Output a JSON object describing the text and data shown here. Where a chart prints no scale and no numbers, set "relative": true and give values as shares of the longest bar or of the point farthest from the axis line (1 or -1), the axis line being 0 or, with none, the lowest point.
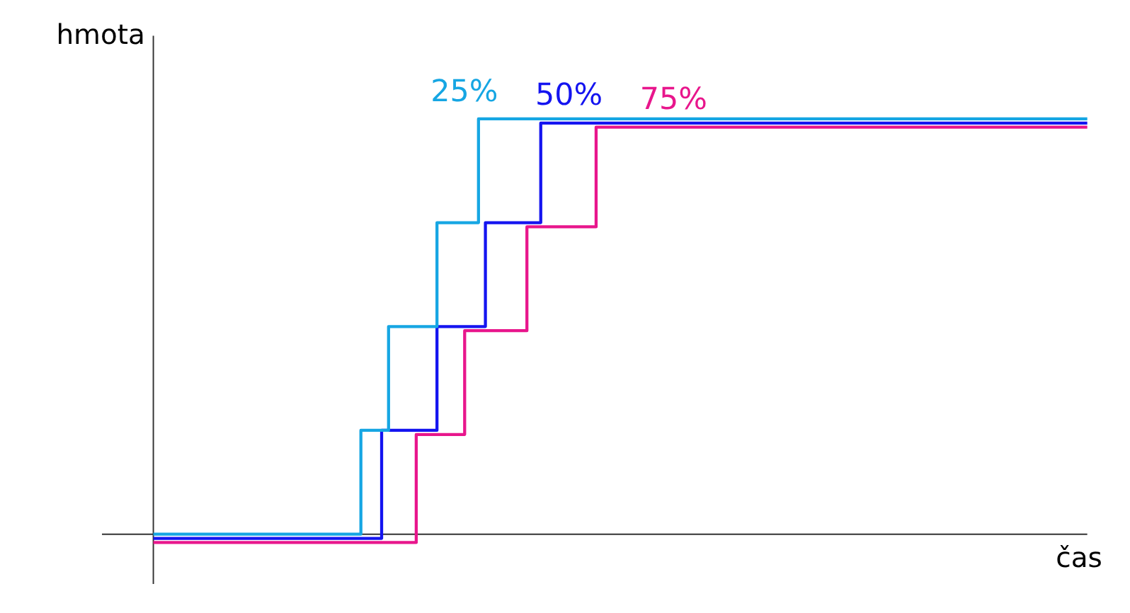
{
  "chart_data": {
    "type": "step",
    "relative": true,
    "xlabel": "čas",
    "ylabel": "hmota",
    "grid": false,
    "categories": [
      null,
      null,
      null,
      null,
      null,
      null,
      null,
      null,
      null,
      null,
      null,
      null,
      null,
      null,
      null,
      null,
      null,
      null,
      null,
      null,
      null,
      null,
      null,
      null,
      null,
      null,
      null,
      null,
      null,
      null,
      null,
      null,
      null,
      null,
      null,
      null,
      null,
      null,
      null,
      null,
      null,
      null,
      null,
      null,
      null,
      null,
      null,
      null,
      null,
      null,
      null,
      null,
      null,
      null,
      null,
      null,
      null,
      null,
      null,
      null,
      null,
      null,
      null,
      null,
      null,
      null,
      null,
      null,
      null,
      null,
      null,
      null,
      null,
      null,
      null,
      null,
      null,
      null,
      null,
      null,
      null,
      null,
      null,
      null,
      null,
      null,
      null,
      null,
      null,
      null,
      null,
      null,
      null,
      null,
      null,
      null,
      null,
      null,
      null,
      null,
      null,
      null,
      null,
      null,
      null,
      null,
      null,
      null,
      null,
      null,
      null,
      null,
      null,
      null,
      null,
      null,
      null,
      null,
      null,
      null,
      null,
      null,
      null,
      null,
      null,
      null,
      null,
      null,
      null,
      null,
      null,
      null,
      null,
      null,
      null,
      null
    ],
    "series": [
      {
        "name": "25%",
        "color": "#16a6e3",
        "values": [
          0,
          0,
          0,
          0,
          0,
          0,
          0,
          0,
          0,
          0,
          0,
          0,
          0,
          0,
          0,
          0,
          0,
          0,
          0,
          0,
          0,
          0,
          0,
          0,
          0,
          0,
          0,
          0,
          0,
          0,
          0.25,
          0.25,
          0.25,
          0.25,
          0.5,
          0.5,
          0.5,
          0.5,
          0.5,
          0.5,
          0.5,
          0.75,
          0.75,
          0.75,
          0.75,
          0.75,
          0.75,
          1,
          1,
          1,
          1,
          1,
          1,
          1,
          1,
          1,
          1,
          1,
          1,
          1,
          1,
          1,
          1,
          1,
          1,
          1,
          1,
          1,
          1,
          1,
          1,
          1,
          1,
          1,
          1,
          1,
          1,
          1,
          1,
          1,
          1,
          1,
          1,
          1,
          1,
          1,
          1,
          1,
          1,
          1,
          1,
          1,
          1,
          1,
          1,
          1,
          1,
          1,
          1,
          1,
          1,
          1,
          1,
          1,
          1,
          1,
          1,
          1,
          1,
          1,
          1,
          1,
          1,
          1,
          1,
          1,
          1,
          1,
          1,
          1,
          1,
          1,
          1,
          1,
          1,
          1,
          1,
          1,
          1,
          1,
          1,
          1,
          1,
          1,
          1,
          1
        ]
      },
      {
        "name": "50%",
        "color": "#1414f0",
        "values": [
          -0.01,
          -0.01,
          -0.01,
          -0.01,
          -0.01,
          -0.01,
          -0.01,
          -0.01,
          -0.01,
          -0.01,
          -0.01,
          -0.01,
          -0.01,
          -0.01,
          -0.01,
          -0.01,
          -0.01,
          -0.01,
          -0.01,
          -0.01,
          -0.01,
          -0.01,
          -0.01,
          -0.01,
          -0.01,
          -0.01,
          -0.01,
          -0.01,
          -0.01,
          -0.01,
          -0.01,
          -0.01,
          -0.01,
          0.25,
          0.25,
          0.25,
          0.25,
          0.25,
          0.25,
          0.25,
          0.25,
          0.5,
          0.5,
          0.5,
          0.5,
          0.5,
          0.5,
          0.5,
          0.75,
          0.75,
          0.75,
          0.75,
          0.75,
          0.75,
          0.75,
          0.75,
          0.99,
          0.99,
          0.99,
          0.99,
          0.99,
          0.99,
          0.99,
          0.99,
          0.99,
          0.99,
          0.99,
          0.99,
          0.99,
          0.99,
          0.99,
          0.99,
          0.99,
          0.99,
          0.99,
          0.99,
          0.99,
          0.99,
          0.99,
          0.99,
          0.99,
          0.99,
          0.99,
          0.99,
          0.99,
          0.99,
          0.99,
          0.99,
          0.99,
          0.99,
          0.99,
          0.99,
          0.99,
          0.99,
          0.99,
          0.99,
          0.99,
          0.99,
          0.99,
          0.99,
          0.99,
          0.99,
          0.99,
          0.99,
          0.99,
          0.99,
          0.99,
          0.99,
          0.99,
          0.99,
          0.99,
          0.99,
          0.99,
          0.99,
          0.99,
          0.99,
          0.99,
          0.99,
          0.99,
          0.99,
          0.99,
          0.99,
          0.99,
          0.99,
          0.99,
          0.99,
          0.99,
          0.99,
          0.99,
          0.99,
          0.99,
          0.99,
          0.99,
          0.99,
          0.99,
          0.99
        ]
      },
      {
        "name": "75%",
        "color": "#e8168c",
        "values": [
          -0.02,
          -0.02,
          -0.02,
          -0.02,
          -0.02,
          -0.02,
          -0.02,
          -0.02,
          -0.02,
          -0.02,
          -0.02,
          -0.02,
          -0.02,
          -0.02,
          -0.02,
          -0.02,
          -0.02,
          -0.02,
          -0.02,
          -0.02,
          -0.02,
          -0.02,
          -0.02,
          -0.02,
          -0.02,
          -0.02,
          -0.02,
          -0.02,
          -0.02,
          -0.02,
          -0.02,
          -0.02,
          -0.02,
          -0.02,
          -0.02,
          -0.02,
          -0.02,
          -0.02,
          0.24,
          0.24,
          0.24,
          0.24,
          0.24,
          0.24,
          0.24,
          0.49,
          0.49,
          0.49,
          0.49,
          0.49,
          0.49,
          0.49,
          0.49,
          0.49,
          0.74,
          0.74,
          0.74,
          0.74,
          0.74,
          0.74,
          0.74,
          0.74,
          0.74,
          0.74,
          0.98,
          0.98,
          0.98,
          0.98,
          0.98,
          0.98,
          0.98,
          0.98,
          0.98,
          0.98,
          0.98,
          0.98,
          0.98,
          0.98,
          0.98,
          0.98,
          0.98,
          0.98,
          0.98,
          0.98,
          0.98,
          0.98,
          0.98,
          0.98,
          0.98,
          0.98,
          0.98,
          0.98,
          0.98,
          0.98,
          0.98,
          0.98,
          0.98,
          0.98,
          0.98,
          0.98,
          0.98,
          0.98,
          0.98,
          0.98,
          0.98,
          0.98,
          0.98,
          0.98,
          0.98,
          0.98,
          0.98,
          0.98,
          0.98,
          0.98,
          0.98,
          0.98,
          0.98,
          0.98,
          0.98,
          0.98,
          0.98,
          0.98,
          0.98,
          0.98,
          0.98,
          0.98,
          0.98,
          0.98,
          0.98,
          0.98,
          0.98,
          0.98,
          0.98,
          0.98,
          0.98,
          0.98
        ]
      }
    ]
  }
}
